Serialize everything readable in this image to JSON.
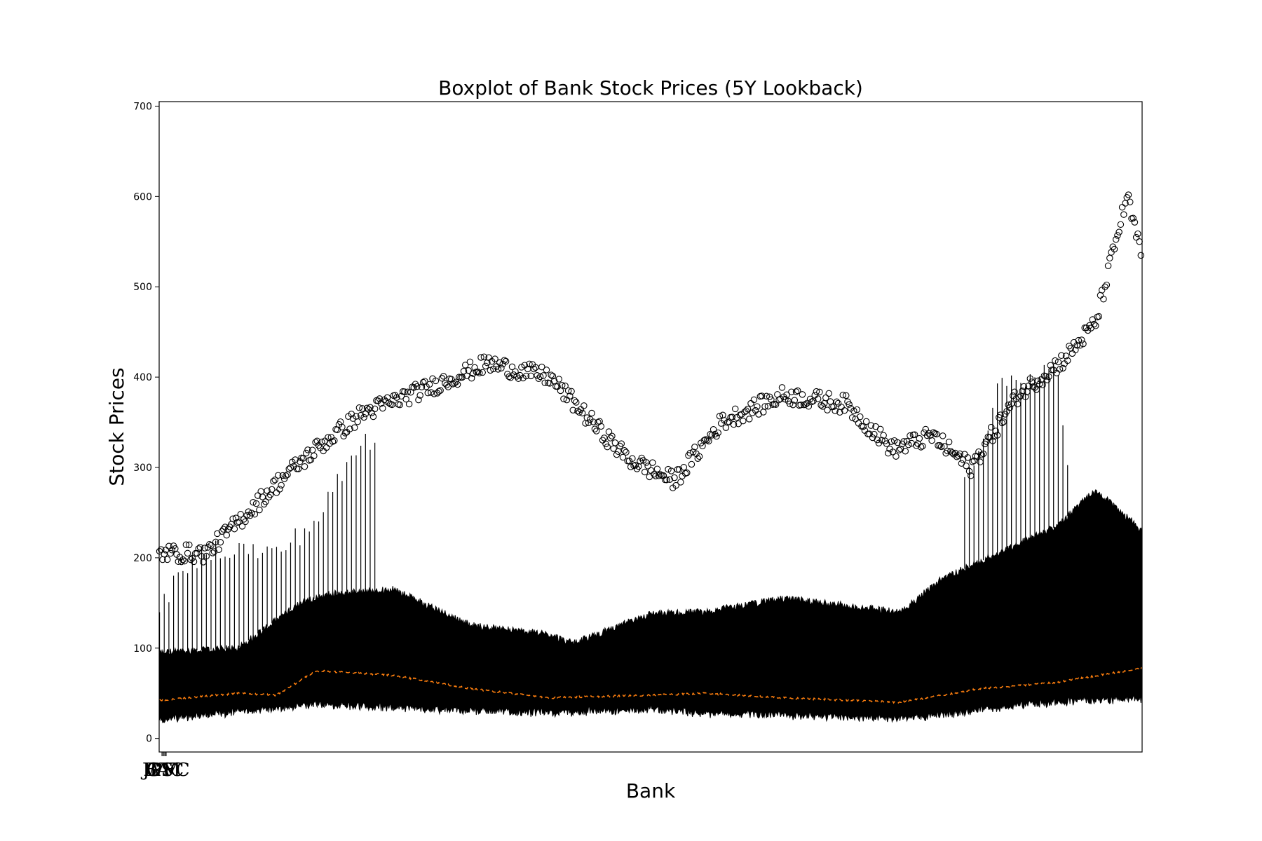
{
  "chart_data": {
    "type": "boxplot",
    "title": "Boxplot of Bank Stock Prices (5Y Lookback)",
    "xlabel": "Bank",
    "ylabel": "Stock Prices",
    "ylim": [
      -15,
      705
    ],
    "yticks": [
      0,
      100,
      200,
      300,
      400,
      500,
      600,
      700
    ],
    "xtick_labels": [
      "JPM",
      "BAC",
      "WFC",
      "C",
      "GS"
    ],
    "grid": false,
    "n_boxes": 1260,
    "colors": {
      "box": "#000000",
      "median": "#ff7f0e",
      "outlier_edge": "#000000",
      "axes": "#000000"
    },
    "series": [
      {
        "stat": "q1",
        "x": [
          0,
          200,
          300,
          400,
          500,
          630,
          700,
          800,
          950,
          1050,
          1150,
          1260
        ],
        "values": [
          25,
          42,
          38,
          35,
          32,
          37,
          32,
          30,
          26,
          35,
          45,
          48
        ]
      },
      {
        "stat": "median",
        "x": [
          0,
          100,
          150,
          200,
          300,
          400,
          500,
          630,
          700,
          800,
          950,
          1050,
          1150,
          1260
        ],
        "values": [
          42,
          50,
          48,
          75,
          70,
          55,
          45,
          48,
          50,
          45,
          40,
          55,
          62,
          78
        ]
      },
      {
        "stat": "q3_top",
        "x": [
          0,
          100,
          180,
          220,
          300,
          400,
          500,
          530,
          630,
          700,
          800,
          950,
          1000,
          1150,
          1200,
          1260
        ],
        "values": [
          95,
          100,
          150,
          160,
          165,
          125,
          115,
          105,
          138,
          140,
          155,
          140,
          175,
          235,
          275,
          230
        ]
      },
      {
        "stat": "whisker_high",
        "x": [
          0,
          60,
          100,
          150,
          200,
          260,
          1040,
          1080,
          1150,
          1200,
          1260
        ],
        "values": [
          150,
          210,
          210,
          205,
          240,
          330,
          300,
          395,
          410,
          0,
          0
        ]
      },
      {
        "stat": "outliers",
        "x": [
          60,
          160,
          200,
          260,
          350,
          420,
          500,
          560,
          600,
          660,
          720,
          800,
          880,
          940,
          990,
          1040,
          1100,
          1160,
          1200,
          1240,
          1260
        ],
        "values": [
          205,
          290,
          320,
          360,
          390,
          415,
          400,
          345,
          310,
          285,
          350,
          380,
          370,
          320,
          335,
          300,
          380,
          420,
          460,
          600,
          530
        ]
      }
    ]
  }
}
